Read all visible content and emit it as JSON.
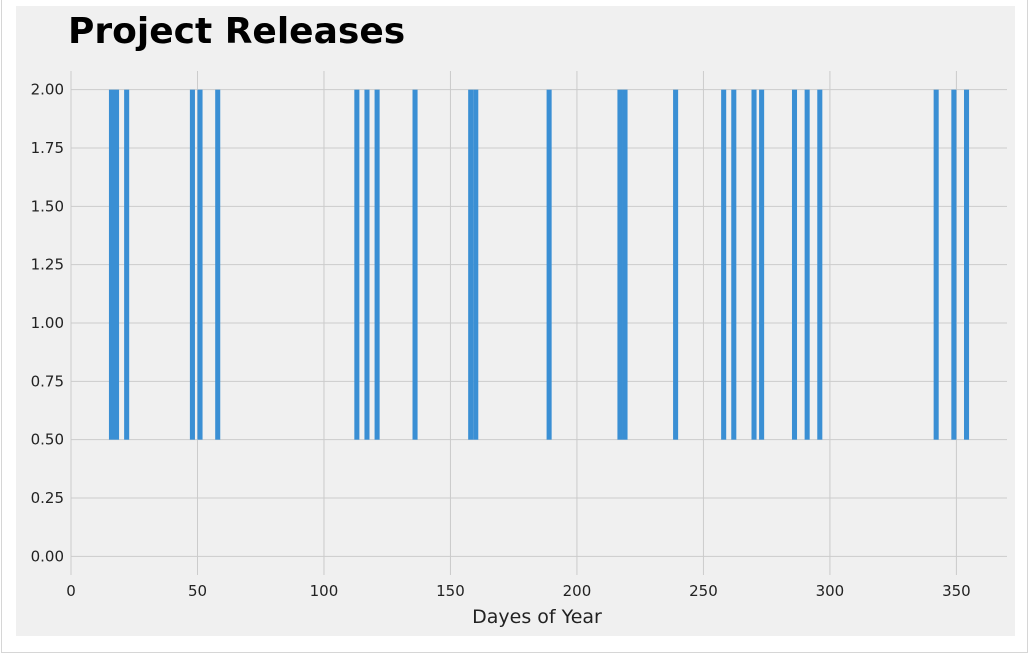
{
  "chart_data": {
    "type": "bar",
    "title": "Project Releases",
    "xlabel": "Dayes of Year",
    "ylabel": "",
    "xlim": [
      0,
      370
    ],
    "ylim": [
      -0.08,
      2.08
    ],
    "x_ticks": [
      0,
      50,
      100,
      150,
      200,
      250,
      300,
      350
    ],
    "y_ticks": [
      0.0,
      0.25,
      0.5,
      0.75,
      1.0,
      1.25,
      1.5,
      1.75,
      2.0
    ],
    "x_tick_labels": [
      "0",
      "50",
      "100",
      "150",
      "200",
      "250",
      "300",
      "350"
    ],
    "y_tick_labels": [
      "0.00",
      "0.25",
      "0.50",
      "0.75",
      "1.00",
      "1.25",
      "1.50",
      "1.75",
      "2.00"
    ],
    "bar_bottom": 0.5,
    "bar_width": 2,
    "x": [
      16,
      18,
      22,
      48,
      51,
      58,
      113,
      117,
      121,
      136,
      158,
      160,
      189,
      217,
      219,
      239,
      258,
      262,
      270,
      273,
      286,
      291,
      296,
      342,
      349,
      354
    ],
    "values": [
      1.5,
      1.5,
      1.5,
      1.5,
      1.5,
      1.5,
      1.5,
      1.5,
      1.5,
      1.5,
      1.5,
      1.5,
      1.5,
      1.5,
      1.5,
      1.5,
      1.5,
      1.5,
      1.5,
      1.5,
      1.5,
      1.5,
      1.5,
      1.5,
      1.5,
      1.5
    ],
    "grid": true,
    "colors": {
      "bar": "#3a8fd4",
      "plot_bg": "#f0f0f0",
      "grid": "#cbcbcb"
    }
  }
}
